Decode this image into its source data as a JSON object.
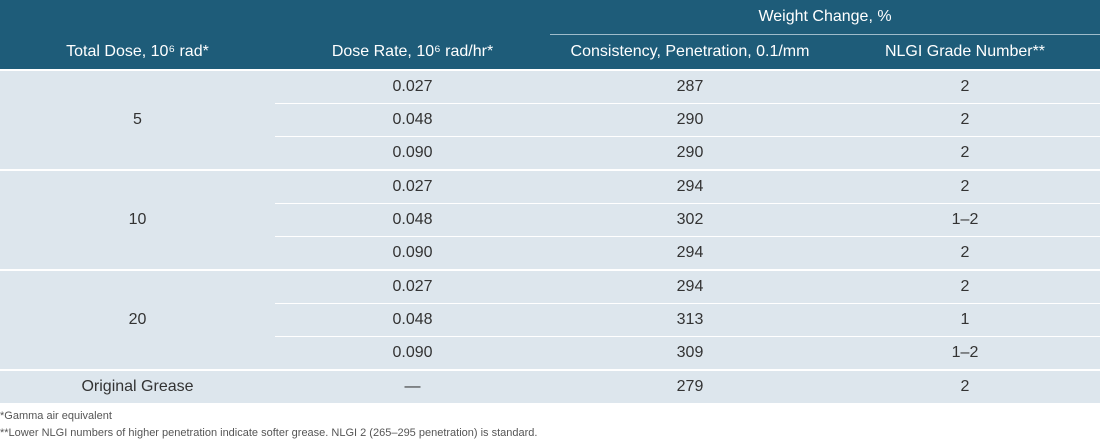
{
  "table": {
    "header": {
      "group_label": "Weight Change, %",
      "columns": [
        "Total Dose, 10⁶ rad*",
        "Dose Rate, 10⁶ rad/hr*",
        "Consistency, Penetration, 0.1/mm",
        "NLGI Grade Number**"
      ]
    },
    "groups": [
      {
        "total_dose": "5",
        "rows": [
          [
            "0.027",
            "287",
            "2"
          ],
          [
            "0.048",
            "290",
            "2"
          ],
          [
            "0.090",
            "290",
            "2"
          ]
        ]
      },
      {
        "total_dose": "10",
        "rows": [
          [
            "0.027",
            "294",
            "2"
          ],
          [
            "0.048",
            "302",
            "1–2"
          ],
          [
            "0.090",
            "294",
            "2"
          ]
        ]
      },
      {
        "total_dose": "20",
        "rows": [
          [
            "0.027",
            "294",
            "2"
          ],
          [
            "0.048",
            "313",
            "1"
          ],
          [
            "0.090",
            "309",
            "1–2"
          ]
        ]
      }
    ],
    "original": [
      "Original Grease",
      "—",
      "279",
      "2"
    ]
  },
  "footnotes": [
    "*Gamma air equivalent",
    "**Lower NLGI numbers of higher penetration indicate softer grease. NLGI 2 (265–295 penetration) is standard."
  ]
}
